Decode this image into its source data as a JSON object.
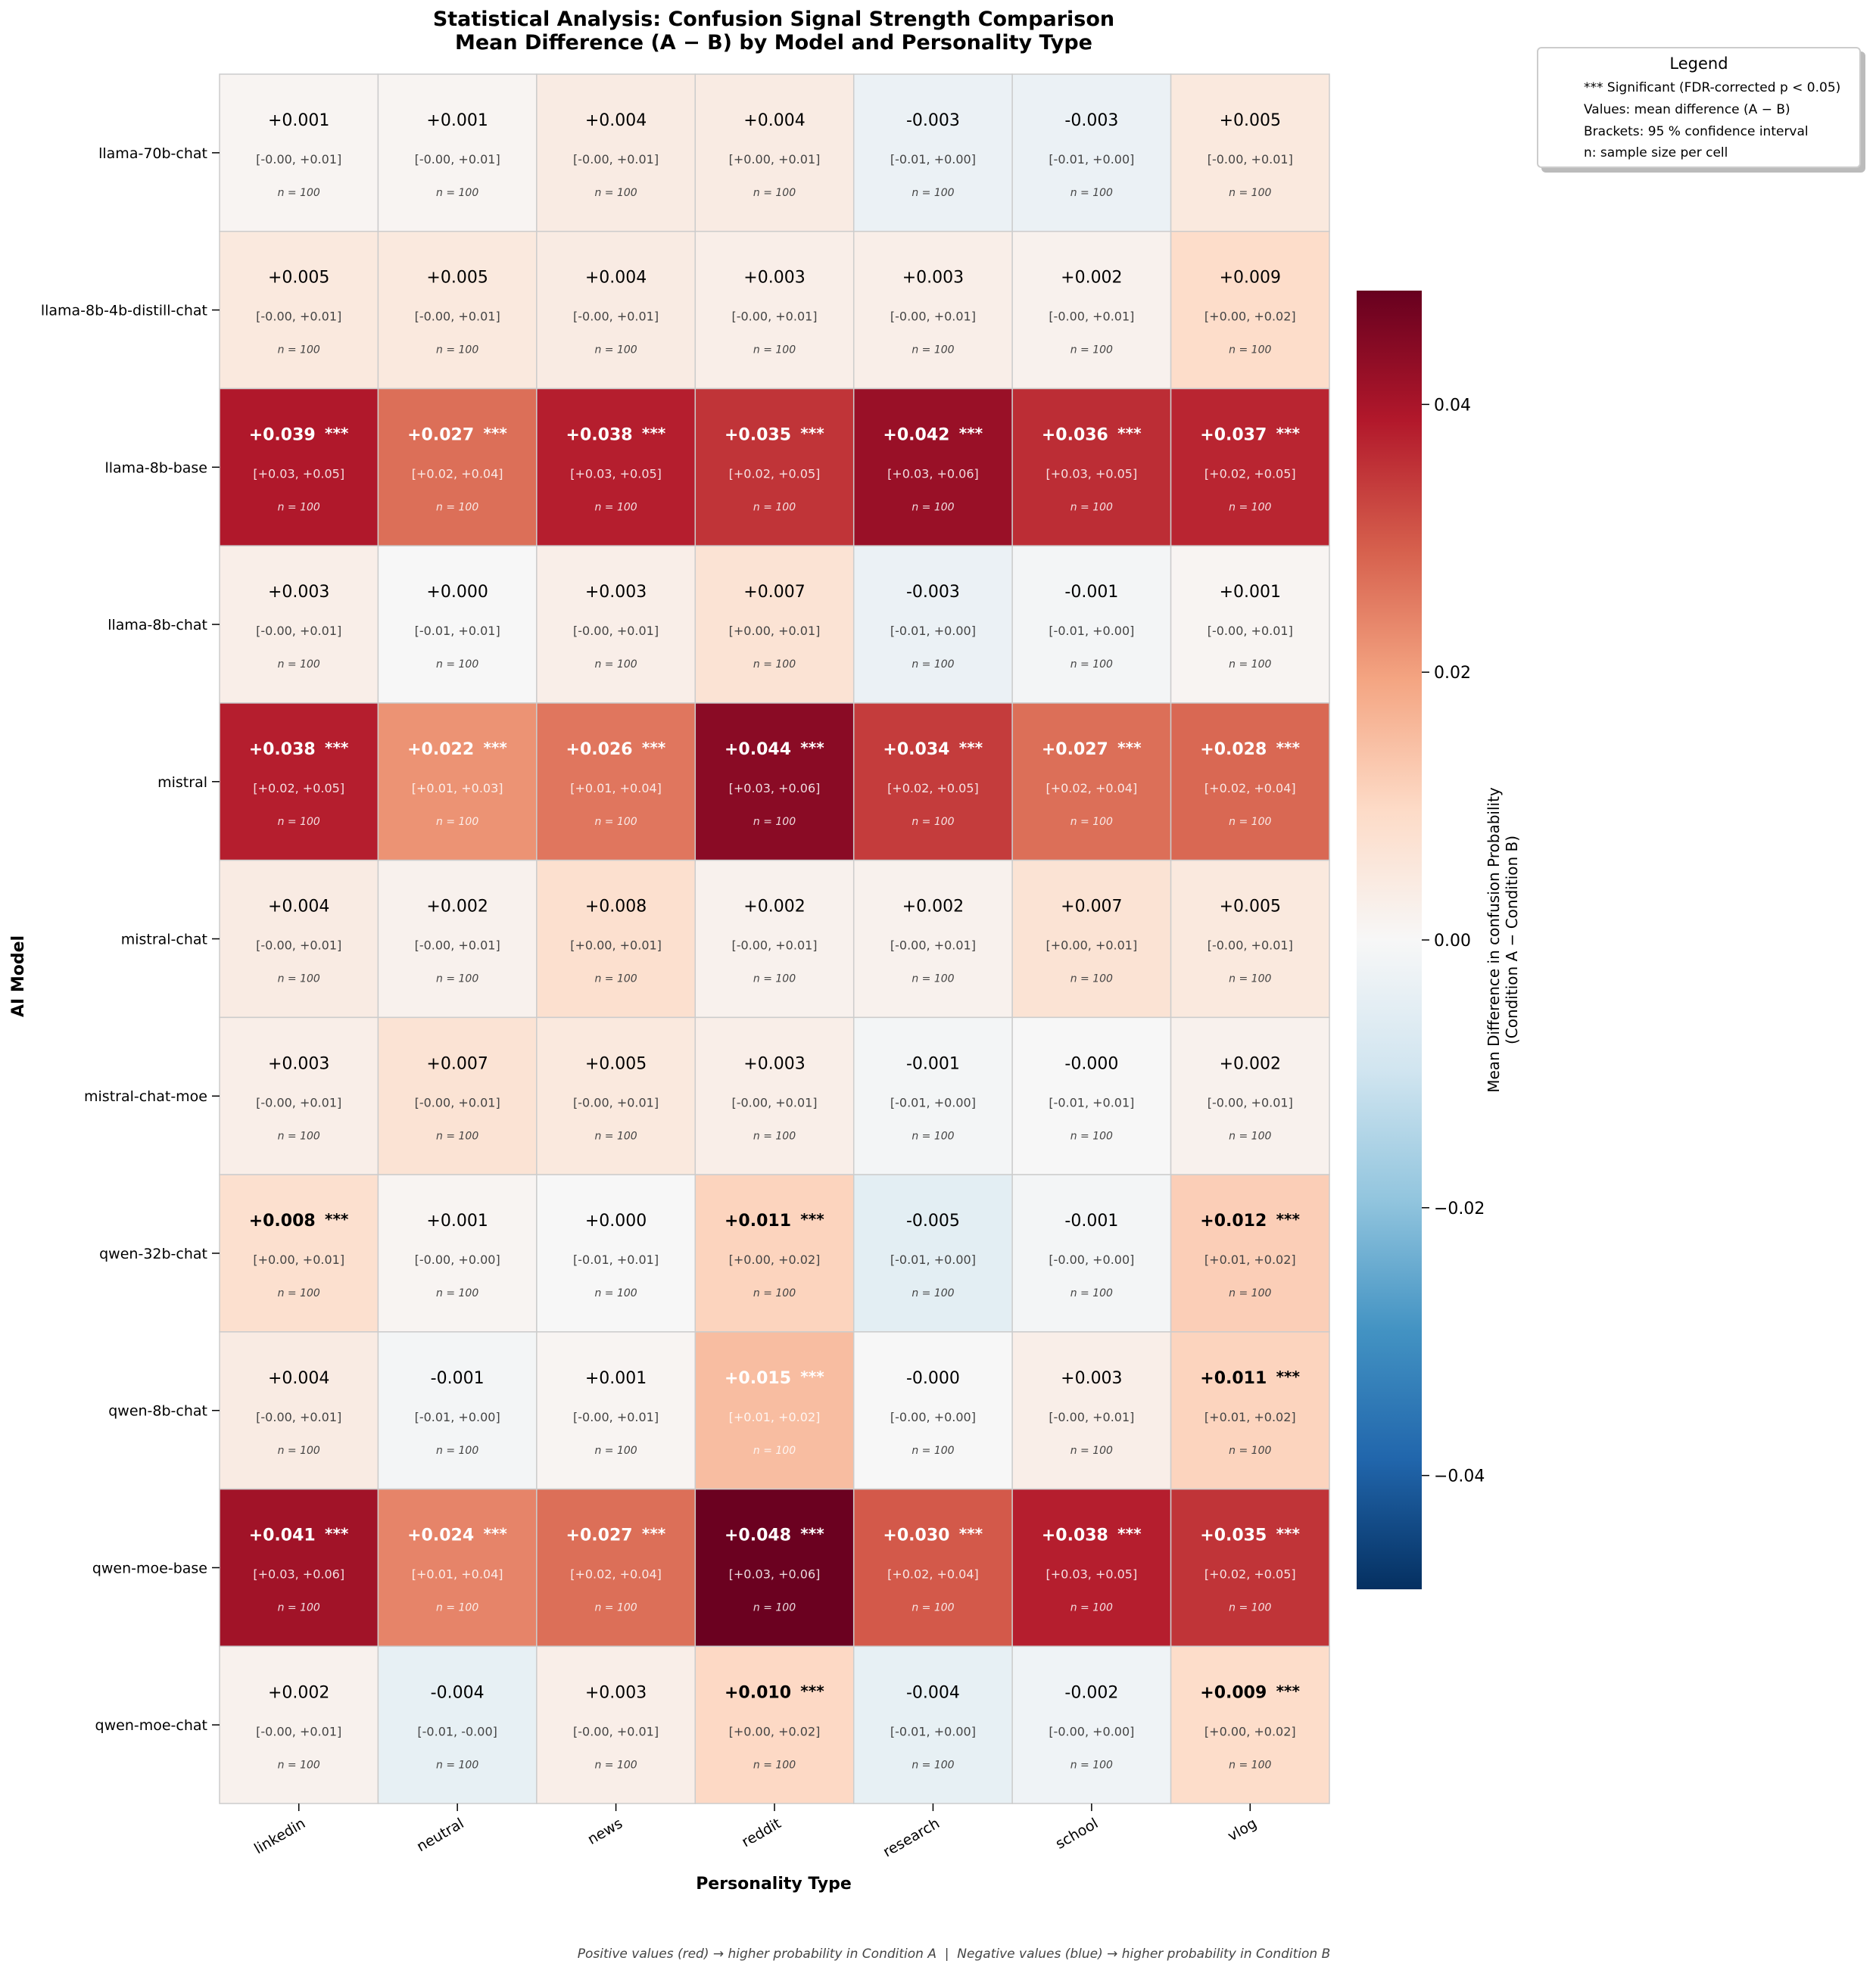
{
  "chart_data": {
    "type": "heatmap",
    "title": "Statistical Analysis: Confusion Signal Strength Comparison",
    "subtitle": "Mean Difference (A − B) by Model and Personality Type",
    "xlabel": "Personality Type",
    "ylabel": "AI Model",
    "columns": [
      "linkedin",
      "neutral",
      "news",
      "reddit",
      "research",
      "school",
      "vlog"
    ],
    "rows": [
      "llama-70b-chat",
      "llama-8b-4b-distill-chat",
      "llama-8b-base",
      "llama-8b-chat",
      "mistral",
      "mistral-chat",
      "mistral-chat-moe",
      "qwen-32b-chat",
      "qwen-8b-chat",
      "qwen-moe-base",
      "qwen-moe-chat"
    ],
    "values": [
      [
        0.001,
        0.001,
        0.004,
        0.004,
        -0.003,
        -0.003,
        0.005
      ],
      [
        0.005,
        0.005,
        0.004,
        0.003,
        0.003,
        0.002,
        0.009
      ],
      [
        0.039,
        0.027,
        0.038,
        0.035,
        0.042,
        0.036,
        0.037
      ],
      [
        0.003,
        0.0,
        0.003,
        0.007,
        -0.003,
        -0.001,
        0.001
      ],
      [
        0.038,
        0.022,
        0.026,
        0.044,
        0.034,
        0.027,
        0.028
      ],
      [
        0.004,
        0.002,
        0.008,
        0.002,
        0.002,
        0.007,
        0.005
      ],
      [
        0.003,
        0.007,
        0.005,
        0.003,
        -0.001,
        -0.0,
        0.002
      ],
      [
        0.008,
        0.001,
        0.0,
        0.011,
        -0.005,
        -0.001,
        0.012
      ],
      [
        0.004,
        -0.001,
        0.001,
        0.015,
        -0.0,
        0.003,
        0.011
      ],
      [
        0.041,
        0.024,
        0.027,
        0.048,
        0.03,
        0.038,
        0.035
      ],
      [
        0.002,
        -0.004,
        0.003,
        0.01,
        -0.004,
        -0.002,
        0.009
      ]
    ],
    "value_labels": [
      [
        "+0.001",
        "+0.001",
        "+0.004",
        "+0.004",
        "-0.003",
        "-0.003",
        "+0.005"
      ],
      [
        "+0.005",
        "+0.005",
        "+0.004",
        "+0.003",
        "+0.003",
        "+0.002",
        "+0.009"
      ],
      [
        "+0.039",
        "+0.027",
        "+0.038",
        "+0.035",
        "+0.042",
        "+0.036",
        "+0.037"
      ],
      [
        "+0.003",
        "+0.000",
        "+0.003",
        "+0.007",
        "-0.003",
        "-0.001",
        "+0.001"
      ],
      [
        "+0.038",
        "+0.022",
        "+0.026",
        "+0.044",
        "+0.034",
        "+0.027",
        "+0.028"
      ],
      [
        "+0.004",
        "+0.002",
        "+0.008",
        "+0.002",
        "+0.002",
        "+0.007",
        "+0.005"
      ],
      [
        "+0.003",
        "+0.007",
        "+0.005",
        "+0.003",
        "-0.001",
        "-0.000",
        "+0.002"
      ],
      [
        "+0.008",
        "+0.001",
        "+0.000",
        "+0.011",
        "-0.005",
        "-0.001",
        "+0.012"
      ],
      [
        "+0.004",
        "-0.001",
        "+0.001",
        "+0.015",
        "-0.000",
        "+0.003",
        "+0.011"
      ],
      [
        "+0.041",
        "+0.024",
        "+0.027",
        "+0.048",
        "+0.030",
        "+0.038",
        "+0.035"
      ],
      [
        "+0.002",
        "-0.004",
        "+0.003",
        "+0.010",
        "-0.004",
        "-0.002",
        "+0.009"
      ]
    ],
    "ci_labels": [
      [
        "[-0.00, +0.01]",
        "[-0.00, +0.01]",
        "[-0.00, +0.01]",
        "[+0.00, +0.01]",
        "[-0.01, +0.00]",
        "[-0.01, +0.00]",
        "[-0.00, +0.01]"
      ],
      [
        "[-0.00, +0.01]",
        "[-0.00, +0.01]",
        "[-0.00, +0.01]",
        "[-0.00, +0.01]",
        "[-0.00, +0.01]",
        "[-0.00, +0.01]",
        "[+0.00, +0.02]"
      ],
      [
        "[+0.03, +0.05]",
        "[+0.02, +0.04]",
        "[+0.03, +0.05]",
        "[+0.02, +0.05]",
        "[+0.03, +0.06]",
        "[+0.03, +0.05]",
        "[+0.02, +0.05]"
      ],
      [
        "[-0.00, +0.01]",
        "[-0.01, +0.01]",
        "[-0.00, +0.01]",
        "[+0.00, +0.01]",
        "[-0.01, +0.00]",
        "[-0.01, +0.00]",
        "[-0.00, +0.01]"
      ],
      [
        "[+0.02, +0.05]",
        "[+0.01, +0.03]",
        "[+0.01, +0.04]",
        "[+0.03, +0.06]",
        "[+0.02, +0.05]",
        "[+0.02, +0.04]",
        "[+0.02, +0.04]"
      ],
      [
        "[-0.00, +0.01]",
        "[-0.00, +0.01]",
        "[+0.00, +0.01]",
        "[-0.00, +0.01]",
        "[-0.00, +0.01]",
        "[+0.00, +0.01]",
        "[-0.00, +0.01]"
      ],
      [
        "[-0.00, +0.01]",
        "[-0.00, +0.01]",
        "[-0.00, +0.01]",
        "[-0.00, +0.01]",
        "[-0.01, +0.00]",
        "[-0.01, +0.01]",
        "[-0.00, +0.01]"
      ],
      [
        "[+0.00, +0.01]",
        "[-0.00, +0.00]",
        "[-0.01, +0.01]",
        "[+0.00, +0.02]",
        "[-0.01, +0.00]",
        "[-0.00, +0.00]",
        "[+0.01, +0.02]"
      ],
      [
        "[-0.00, +0.01]",
        "[-0.01, +0.00]",
        "[-0.00, +0.01]",
        "[+0.01, +0.02]",
        "[-0.00, +0.00]",
        "[-0.00, +0.01]",
        "[+0.01, +0.02]"
      ],
      [
        "[+0.03, +0.06]",
        "[+0.01, +0.04]",
        "[+0.02, +0.04]",
        "[+0.03, +0.06]",
        "[+0.02, +0.04]",
        "[+0.03, +0.05]",
        "[+0.02, +0.05]"
      ],
      [
        "[-0.00, +0.01]",
        "[-0.01, -0.00]",
        "[-0.00, +0.01]",
        "[+0.00, +0.02]",
        "[-0.01, +0.00]",
        "[-0.00, +0.00]",
        "[+0.00, +0.02]"
      ]
    ],
    "significant": [
      [
        false,
        false,
        false,
        false,
        false,
        false,
        false
      ],
      [
        false,
        false,
        false,
        false,
        false,
        false,
        false
      ],
      [
        true,
        true,
        true,
        true,
        true,
        true,
        true
      ],
      [
        false,
        false,
        false,
        false,
        false,
        false,
        false
      ],
      [
        true,
        true,
        true,
        true,
        true,
        true,
        true
      ],
      [
        false,
        false,
        false,
        false,
        false,
        false,
        false
      ],
      [
        false,
        false,
        false,
        false,
        false,
        false,
        false
      ],
      [
        true,
        false,
        false,
        true,
        false,
        false,
        true
      ],
      [
        false,
        false,
        false,
        true,
        false,
        false,
        true
      ],
      [
        true,
        true,
        true,
        true,
        true,
        true,
        true
      ],
      [
        false,
        false,
        false,
        true,
        false,
        false,
        true
      ]
    ],
    "significance_marker": "***",
    "n_label": "n = 100",
    "colorbar": {
      "label_line1": "Mean Difference in confusion Probability",
      "label_line2": "(Condition A − Condition B)",
      "vmin": -0.0485,
      "vmax": 0.0485,
      "ticks": [
        0.04,
        0.02,
        0.0,
        -0.02,
        -0.04
      ],
      "tick_labels": [
        "0.04",
        "0.02",
        "0.00",
        "−0.02",
        "−0.04"
      ],
      "colormap": "RdBu_r",
      "colormap_stops": [
        "#053061",
        "#2166ac",
        "#4393c3",
        "#92c5de",
        "#d1e5f0",
        "#f7f7f7",
        "#fddbc7",
        "#f4a582",
        "#d6604d",
        "#b2182b",
        "#67001f"
      ]
    },
    "grid": true,
    "legend_placement": "top-right"
  },
  "legend": {
    "title": "Legend",
    "lines": [
      "*** Significant (FDR-corrected p < 0.05)",
      "Values: mean difference (A − B)",
      "Brackets: 95 % confidence interval",
      "n: sample size per cell"
    ]
  },
  "footer_note": "Positive values (red) → higher probability in Condition A  |  Negative values (blue) → higher probability in Condition B"
}
